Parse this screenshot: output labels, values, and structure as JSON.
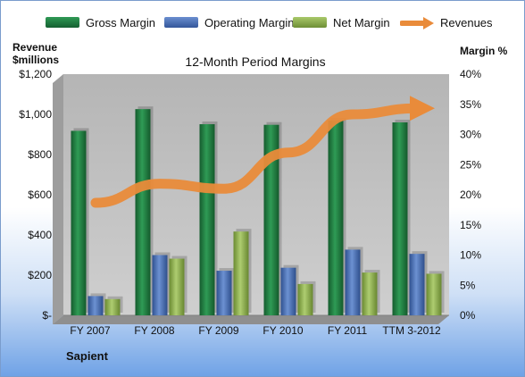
{
  "chart_data": {
    "type": "bar",
    "title": "12-Month Period Margins",
    "categories": [
      "FY 2007",
      "FY 2008",
      "FY 2009",
      "FY 2010",
      "FY 2011",
      "TTM 3-2012"
    ],
    "series": [
      {
        "name": "Gross Margin",
        "axis": "right",
        "unit": "%",
        "values": [
          30.6,
          34.2,
          31.7,
          31.6,
          32.3,
          32.0
        ],
        "color": "#1f7a3f"
      },
      {
        "name": "Operating Margin",
        "axis": "right",
        "unit": "%",
        "values": [
          3.2,
          10.0,
          7.4,
          7.9,
          10.9,
          10.2
        ],
        "color": "#4a72b8"
      },
      {
        "name": "Net Margin",
        "axis": "right",
        "unit": "%",
        "values": [
          2.7,
          9.4,
          13.9,
          5.2,
          7.1,
          6.9
        ],
        "color": "#8fb24a"
      },
      {
        "name": "Revenues",
        "type": "line",
        "axis": "left",
        "unit": "$millions",
        "values": [
          560,
          655,
          630,
          810,
          1000,
          1030
        ],
        "color": "#e98b3a"
      }
    ],
    "left_axis": {
      "title_line1": "Revenue",
      "title_line2": "$millions",
      "min": 0,
      "max": 1200,
      "ticks": [
        "$-",
        "$200",
        "$400",
        "$600",
        "$800",
        "$1,000",
        "$1,200"
      ]
    },
    "right_axis": {
      "title": "Margin %",
      "min": 0,
      "max": 40,
      "ticks": [
        "0%",
        "5%",
        "10%",
        "15%",
        "20%",
        "25%",
        "30%",
        "35%",
        "40%"
      ]
    },
    "legend_position": "top",
    "grid": false
  },
  "footer": {
    "company": "Sapient"
  }
}
